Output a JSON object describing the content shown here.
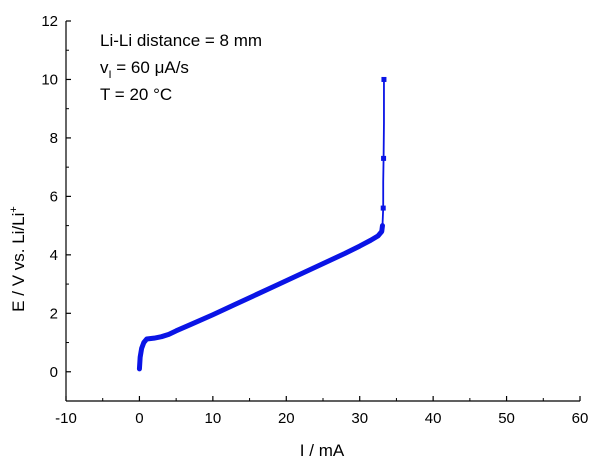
{
  "chart_data": {
    "type": "scatter",
    "xlabel": "I / mA",
    "ylabel_main": "E / V vs. Li/Li",
    "ylabel_sup": "+",
    "xlim": [
      -10,
      60
    ],
    "ylim": [
      -1,
      12
    ],
    "xticks": [
      -10,
      0,
      10,
      20,
      30,
      40,
      50,
      60
    ],
    "yticks": [
      0,
      2,
      4,
      6,
      8,
      10,
      12
    ],
    "grid": false,
    "annotations": {
      "line1": "Li-Li distance = 8 mm",
      "line2_main": "v",
      "line2_sub": "I",
      "line2_rest": " = 60 μA/s",
      "line3": "T = 20 °C"
    },
    "series": [
      {
        "color": "#0a14e6",
        "points": [
          [
            0.0,
            0.1
          ],
          [
            0.1,
            0.5
          ],
          [
            0.3,
            0.8
          ],
          [
            0.6,
            1.0
          ],
          [
            1.0,
            1.12
          ],
          [
            2.0,
            1.15
          ],
          [
            3.0,
            1.2
          ],
          [
            4.0,
            1.28
          ],
          [
            5.0,
            1.4
          ],
          [
            7.0,
            1.62
          ],
          [
            10.0,
            1.95
          ],
          [
            13.0,
            2.3
          ],
          [
            16.0,
            2.65
          ],
          [
            19.0,
            3.0
          ],
          [
            22.0,
            3.35
          ],
          [
            25.0,
            3.7
          ],
          [
            28.0,
            4.05
          ],
          [
            30.0,
            4.3
          ],
          [
            31.5,
            4.5
          ],
          [
            32.5,
            4.65
          ],
          [
            33.0,
            4.8
          ],
          [
            33.1,
            5.0
          ],
          [
            33.15,
            5.3
          ],
          [
            33.2,
            5.6
          ],
          [
            33.2,
            6.5
          ],
          [
            33.25,
            7.3
          ],
          [
            33.3,
            8.5
          ],
          [
            33.3,
            10.0
          ]
        ],
        "markers": [
          [
            33.2,
            5.6
          ],
          [
            33.25,
            7.3
          ],
          [
            33.3,
            10.0
          ]
        ]
      }
    ]
  }
}
